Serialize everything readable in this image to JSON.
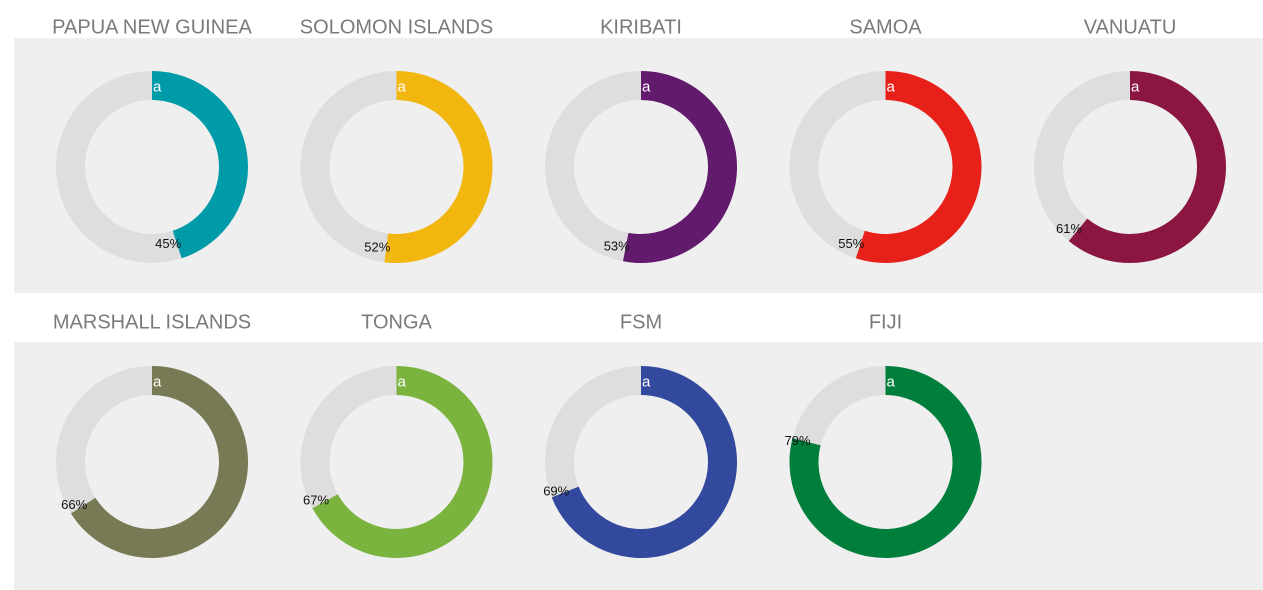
{
  "chart_data": [
    {
      "type": "donut",
      "title": "PAPUA NEW GUINEA",
      "values": [
        45
      ],
      "value_labels": [
        "45%"
      ],
      "color": "#009ba8",
      "annotation": "a"
    },
    {
      "type": "donut",
      "title": "SOLOMON ISLANDS",
      "values": [
        52
      ],
      "value_labels": [
        "52%"
      ],
      "color": "#f2b70f",
      "annotation": "a"
    },
    {
      "type": "donut",
      "title": "KIRIBATI",
      "values": [
        53
      ],
      "value_labels": [
        "53%"
      ],
      "color": "#621a6d",
      "annotation": "a"
    },
    {
      "type": "donut",
      "title": "SAMOA",
      "values": [
        55
      ],
      "value_labels": [
        "55%"
      ],
      "color": "#e8201a",
      "annotation": "a"
    },
    {
      "type": "donut",
      "title": "VANUATU",
      "values": [
        61
      ],
      "value_labels": [
        "61%"
      ],
      "color": "#8b1641",
      "annotation": "a"
    },
    {
      "type": "donut",
      "title": "MARSHALL ISLANDS",
      "values": [
        66
      ],
      "value_labels": [
        "66%"
      ],
      "color": "#787a55",
      "annotation": "a"
    },
    {
      "type": "donut",
      "title": "TONGA",
      "values": [
        67
      ],
      "value_labels": [
        "67%"
      ],
      "color": "#7ab33e",
      "annotation": "a"
    },
    {
      "type": "donut",
      "title": "FSM",
      "values": [
        69
      ],
      "value_labels": [
        "69%"
      ],
      "color": "#32499d",
      "annotation": "a"
    },
    {
      "type": "donut",
      "title": "FIJI",
      "values": [
        79
      ],
      "value_labels": [
        "79%"
      ],
      "color": "#007f3c",
      "annotation": "a"
    }
  ]
}
